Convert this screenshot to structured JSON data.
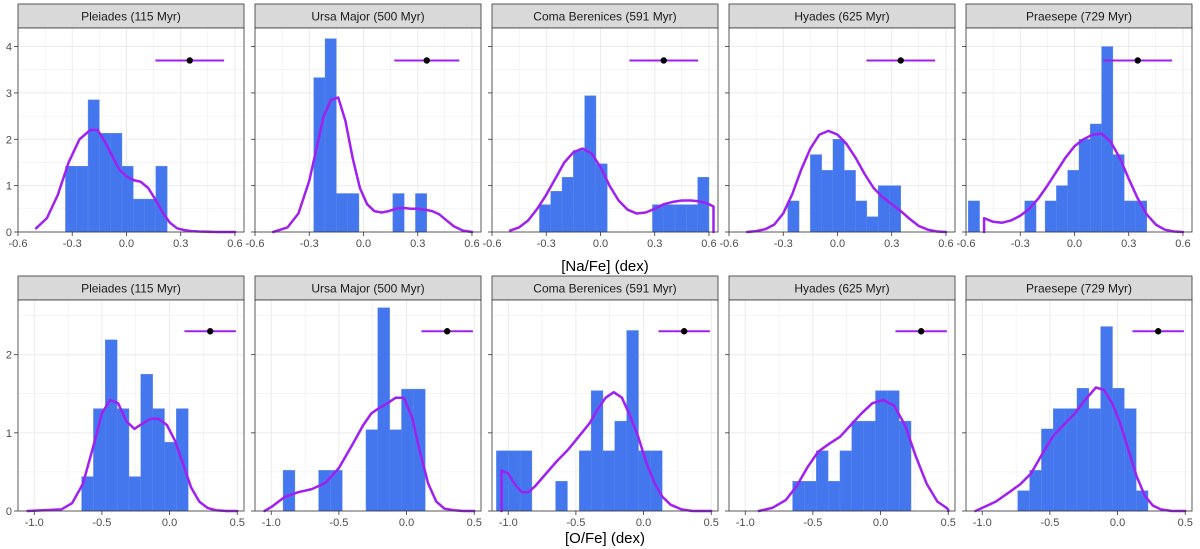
{
  "colors": {
    "bars": "#4477ee",
    "density": "#a020f0",
    "point": "#000000",
    "strip": "#d9d9d9",
    "grid": "#ebebeb"
  },
  "chart_data": [
    {
      "type": "histogram+density",
      "row": "Na",
      "xlabel": "[Na/Fe] (dex)",
      "xlim": [
        -0.6,
        0.65
      ],
      "ylim": [
        0,
        4.4
      ],
      "xticks": [
        "-0.6",
        "-0.3",
        "0.0",
        "0.3",
        "0.6"
      ],
      "yticks": [
        "0",
        "1",
        "2",
        "3",
        "4"
      ],
      "bin_width": 0.0625,
      "panels": [
        {
          "title": "Pleiades (115 Myr)",
          "bin_starts": [
            -0.3375,
            -0.275,
            -0.2125,
            -0.15,
            -0.0875,
            -0.025,
            0.0375,
            0.1,
            0.1625
          ],
          "bin_heights": [
            1.42,
            1.42,
            2.85,
            2.13,
            2.13,
            1.42,
            0.71,
            0.71,
            1.42
          ],
          "density_x": [
            -0.5,
            -0.44,
            -0.38,
            -0.32,
            -0.26,
            -0.2,
            -0.16,
            -0.12,
            -0.08,
            -0.04,
            0.0,
            0.04,
            0.08,
            0.12,
            0.16,
            0.2,
            0.24,
            0.28,
            0.32,
            0.36,
            0.4,
            0.5,
            0.6
          ],
          "density_y": [
            0.08,
            0.3,
            0.8,
            1.5,
            2.0,
            2.2,
            2.2,
            1.95,
            1.65,
            1.35,
            1.2,
            1.12,
            1.08,
            0.95,
            0.7,
            0.42,
            0.2,
            0.08,
            0.04,
            0.02,
            0.01,
            0.0,
            0.0
          ],
          "point": {
            "x": 0.35,
            "xerr": 0.19,
            "y": 3.7
          }
        },
        {
          "title": "Ursa Major (500 Myr)",
          "bin_starts": [
            -0.275,
            -0.2125,
            -0.15,
            -0.0875,
            0.1625,
            0.2875
          ],
          "bin_heights": [
            3.33,
            4.17,
            0.83,
            0.83,
            0.83,
            0.83
          ],
          "density_x": [
            -0.5,
            -0.42,
            -0.36,
            -0.3,
            -0.26,
            -0.22,
            -0.18,
            -0.14,
            -0.1,
            -0.06,
            -0.02,
            0.02,
            0.06,
            0.1,
            0.14,
            0.18,
            0.22,
            0.26,
            0.3,
            0.34,
            0.38,
            0.42,
            0.46,
            0.5,
            0.55,
            0.6
          ],
          "density_y": [
            0.0,
            0.1,
            0.4,
            1.1,
            1.8,
            2.5,
            2.85,
            2.9,
            2.4,
            1.6,
            0.95,
            0.6,
            0.45,
            0.42,
            0.45,
            0.5,
            0.52,
            0.5,
            0.5,
            0.48,
            0.45,
            0.38,
            0.25,
            0.12,
            0.03,
            0.0
          ],
          "point": {
            "x": 0.35,
            "xerr": 0.18,
            "y": 3.7
          }
        },
        {
          "title": "Coma Berenices (591 Myr)",
          "bin_starts": [
            -0.3375,
            -0.275,
            -0.2125,
            -0.15,
            -0.0875,
            -0.025,
            0.2875,
            0.35,
            0.4125,
            0.475,
            0.5375
          ],
          "bin_heights": [
            0.59,
            0.88,
            1.18,
            1.76,
            2.94,
            1.47,
            0.59,
            0.59,
            0.59,
            0.59,
            1.18
          ],
          "density_x": [
            -0.5,
            -0.45,
            -0.4,
            -0.35,
            -0.3,
            -0.25,
            -0.2,
            -0.15,
            -0.1,
            -0.05,
            0.0,
            0.05,
            0.1,
            0.15,
            0.2,
            0.25,
            0.3,
            0.35,
            0.4,
            0.45,
            0.5,
            0.55,
            0.6,
            0.625,
            0.625
          ],
          "density_y": [
            0.03,
            0.1,
            0.25,
            0.5,
            0.8,
            1.15,
            1.5,
            1.72,
            1.8,
            1.7,
            1.4,
            1.0,
            0.68,
            0.48,
            0.4,
            0.42,
            0.5,
            0.6,
            0.65,
            0.68,
            0.68,
            0.66,
            0.6,
            0.55,
            0.0
          ],
          "point": {
            "x": 0.35,
            "xerr": 0.19,
            "y": 3.7
          }
        },
        {
          "title": "Hyades (625 Myr)",
          "bin_starts": [
            -0.275,
            -0.15,
            -0.0875,
            -0.025,
            0.0375,
            0.1,
            0.1625,
            0.225,
            0.2875
          ],
          "bin_heights": [
            0.67,
            1.67,
            1.33,
            2.0,
            1.33,
            0.67,
            0.33,
            1.0,
            1.0
          ],
          "density_x": [
            -0.5,
            -0.45,
            -0.4,
            -0.35,
            -0.3,
            -0.25,
            -0.2,
            -0.15,
            -0.1,
            -0.05,
            0.0,
            0.05,
            0.1,
            0.15,
            0.2,
            0.25,
            0.3,
            0.35,
            0.4,
            0.45,
            0.5,
            0.55,
            0.6
          ],
          "density_y": [
            0.0,
            0.02,
            0.06,
            0.16,
            0.4,
            0.82,
            1.35,
            1.8,
            2.1,
            2.18,
            2.1,
            1.9,
            1.6,
            1.25,
            0.95,
            0.75,
            0.6,
            0.45,
            0.28,
            0.13,
            0.05,
            0.01,
            0.0
          ],
          "point": {
            "x": 0.35,
            "xerr": 0.19,
            "y": 3.7
          }
        },
        {
          "title": "Praesepe (729 Myr)",
          "bin_starts": [
            -0.5875,
            -0.275,
            -0.1625,
            -0.1,
            -0.0375,
            0.025,
            0.0875,
            0.15,
            0.2125,
            0.275,
            0.3375
          ],
          "bin_heights": [
            0.67,
            0.67,
            0.67,
            1.0,
            1.33,
            2.0,
            2.33,
            4.0,
            1.67,
            0.67,
            0.67
          ],
          "density_x": [
            -0.5,
            -0.5,
            -0.45,
            -0.4,
            -0.35,
            -0.3,
            -0.25,
            -0.2,
            -0.15,
            -0.1,
            -0.05,
            0.0,
            0.05,
            0.1,
            0.15,
            0.2,
            0.25,
            0.3,
            0.35,
            0.4,
            0.45,
            0.5,
            0.55,
            0.6
          ],
          "density_y": [
            0.0,
            0.3,
            0.22,
            0.2,
            0.25,
            0.35,
            0.5,
            0.72,
            1.0,
            1.3,
            1.6,
            1.85,
            2.0,
            2.1,
            2.12,
            1.95,
            1.6,
            1.15,
            0.72,
            0.38,
            0.16,
            0.05,
            0.01,
            0.0
          ],
          "point": {
            "x": 0.35,
            "xerr": 0.19,
            "y": 3.7
          }
        }
      ]
    },
    {
      "type": "histogram+density",
      "row": "O",
      "xlabel": "[O/Fe] (dex)",
      "xlim": [
        -1.12,
        0.55
      ],
      "ylim": [
        0,
        2.7
      ],
      "xticks": [
        "-1.0",
        "-0.5",
        "0.0",
        "0.5"
      ],
      "yticks": [
        "0",
        "1",
        "2"
      ],
      "bin_width": 0.0875,
      "panels": [
        {
          "title": "Pleiades (115 Myr)",
          "bin_starts": [
            -0.65,
            -0.5625,
            -0.475,
            -0.3875,
            -0.3,
            -0.2125,
            -0.125,
            -0.0375,
            0.05
          ],
          "bin_heights": [
            0.44,
            1.31,
            2.19,
            1.31,
            0.44,
            1.75,
            1.31,
            0.88,
            1.31
          ],
          "density_x": [
            -1.05,
            -0.8,
            -0.72,
            -0.64,
            -0.56,
            -0.5,
            -0.44,
            -0.38,
            -0.32,
            -0.26,
            -0.2,
            -0.14,
            -0.08,
            -0.02,
            0.04,
            0.1,
            0.16,
            0.22,
            0.28,
            0.34,
            0.42,
            0.5
          ],
          "density_y": [
            0.0,
            0.02,
            0.1,
            0.35,
            0.85,
            1.25,
            1.42,
            1.38,
            1.15,
            1.05,
            1.12,
            1.18,
            1.18,
            1.1,
            0.9,
            0.6,
            0.3,
            0.12,
            0.04,
            0.01,
            0.0,
            0.0
          ],
          "point": {
            "x": 0.3,
            "xerr": 0.19,
            "y": 2.3
          }
        },
        {
          "title": "Ursa Major (500 Myr)",
          "bin_starts": [
            -0.9125,
            -0.65,
            -0.5625,
            -0.3,
            -0.2125,
            -0.125,
            -0.0375,
            0.05
          ],
          "bin_heights": [
            0.52,
            0.52,
            0.52,
            1.04,
            2.6,
            1.04,
            1.56,
            1.56
          ],
          "density_x": [
            -1.05,
            -1.0,
            -0.9,
            -0.8,
            -0.7,
            -0.6,
            -0.5,
            -0.4,
            -0.32,
            -0.26,
            -0.2,
            -0.14,
            -0.08,
            -0.02,
            0.04,
            0.1,
            0.16,
            0.22,
            0.28,
            0.35,
            0.42,
            0.5
          ],
          "density_y": [
            0.0,
            0.05,
            0.18,
            0.24,
            0.28,
            0.36,
            0.55,
            0.85,
            1.1,
            1.25,
            1.32,
            1.38,
            1.45,
            1.45,
            1.2,
            0.75,
            0.35,
            0.12,
            0.03,
            0.01,
            0.0,
            0.0
          ],
          "point": {
            "x": 0.3,
            "xerr": 0.19,
            "y": 2.3
          }
        },
        {
          "title": "Coma Berenices (591 Myr)",
          "bin_starts": [
            -1.0875,
            -1.0,
            -0.9125,
            -0.65,
            -0.475,
            -0.3875,
            -0.3,
            -0.2125,
            -0.125,
            -0.0375,
            0.05
          ],
          "bin_heights": [
            0.77,
            0.77,
            0.77,
            0.38,
            0.77,
            1.54,
            0.77,
            1.15,
            2.31,
            0.77,
            0.77
          ],
          "density_x": [
            -1.05,
            -1.05,
            -1.0,
            -0.95,
            -0.9,
            -0.85,
            -0.8,
            -0.72,
            -0.64,
            -0.56,
            -0.48,
            -0.4,
            -0.34,
            -0.28,
            -0.22,
            -0.16,
            -0.1,
            -0.04,
            0.02,
            0.08,
            0.14,
            0.2,
            0.28,
            0.36,
            0.45,
            0.5
          ],
          "density_y": [
            0.0,
            0.52,
            0.48,
            0.34,
            0.24,
            0.24,
            0.32,
            0.48,
            0.64,
            0.78,
            0.95,
            1.12,
            1.3,
            1.45,
            1.52,
            1.45,
            1.22,
            0.95,
            0.62,
            0.36,
            0.18,
            0.08,
            0.02,
            0.0,
            0.0,
            0.0
          ],
          "point": {
            "x": 0.3,
            "xerr": 0.19,
            "y": 2.3
          }
        },
        {
          "title": "Hyades (625 Myr)",
          "bin_starts": [
            -0.65,
            -0.5625,
            -0.475,
            -0.3875,
            -0.3,
            -0.2125,
            -0.125,
            -0.0375,
            0.05,
            0.1375
          ],
          "bin_heights": [
            0.38,
            0.38,
            0.77,
            0.38,
            0.77,
            1.15,
            1.15,
            1.54,
            1.54,
            1.15
          ],
          "density_x": [
            -0.9,
            -0.8,
            -0.7,
            -0.62,
            -0.54,
            -0.46,
            -0.38,
            -0.3,
            -0.22,
            -0.14,
            -0.06,
            0.02,
            0.1,
            0.18,
            0.26,
            0.34,
            0.42,
            0.48,
            0.5,
            0.5
          ],
          "density_y": [
            0.0,
            0.04,
            0.14,
            0.32,
            0.56,
            0.76,
            0.86,
            0.95,
            1.1,
            1.25,
            1.38,
            1.42,
            1.35,
            1.1,
            0.7,
            0.35,
            0.12,
            0.05,
            0.02,
            0.0
          ],
          "point": {
            "x": 0.3,
            "xerr": 0.19,
            "y": 2.3
          }
        },
        {
          "title": "Praesepe (729 Myr)",
          "bin_starts": [
            -0.7375,
            -0.65,
            -0.5625,
            -0.475,
            -0.3875,
            -0.3,
            -0.2125,
            -0.125,
            -0.0375,
            0.05,
            0.1375
          ],
          "bin_heights": [
            0.26,
            0.52,
            1.05,
            1.31,
            1.31,
            1.57,
            1.31,
            2.36,
            1.57,
            1.31,
            0.26
          ],
          "density_x": [
            -1.05,
            -1.0,
            -0.9,
            -0.8,
            -0.72,
            -0.64,
            -0.56,
            -0.48,
            -0.4,
            -0.32,
            -0.24,
            -0.16,
            -0.1,
            -0.04,
            0.02,
            0.08,
            0.14,
            0.2,
            0.26,
            0.32,
            0.4,
            0.5
          ],
          "density_y": [
            0.0,
            0.04,
            0.12,
            0.24,
            0.34,
            0.48,
            0.72,
            0.95,
            1.1,
            1.24,
            1.42,
            1.58,
            1.55,
            1.38,
            1.12,
            0.78,
            0.45,
            0.2,
            0.07,
            0.02,
            0.0,
            0.0
          ],
          "point": {
            "x": 0.3,
            "xerr": 0.19,
            "y": 2.3
          }
        }
      ]
    }
  ]
}
